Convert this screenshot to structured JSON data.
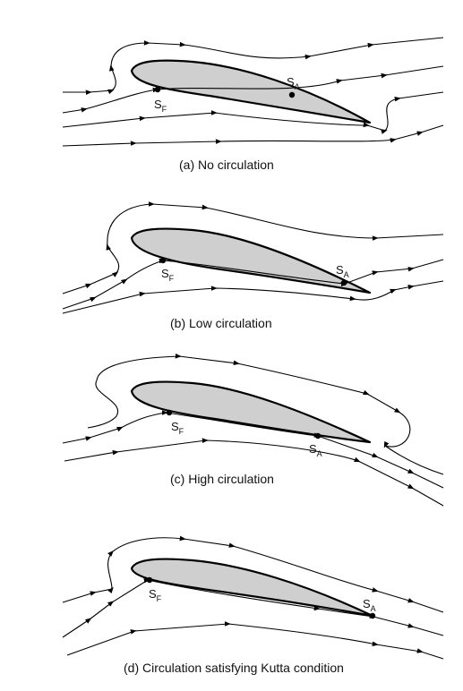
{
  "panels": [
    {
      "caption": "(a) No circulation",
      "front_label": "S",
      "front_sub": "F",
      "rear_label": "S",
      "rear_sub": "A"
    },
    {
      "caption": "(b) Low circulation",
      "front_label": "S",
      "front_sub": "F",
      "rear_label": "S",
      "rear_sub": "A"
    },
    {
      "caption": "(c) High circulation",
      "front_label": "S",
      "front_sub": "F",
      "rear_label": "S",
      "rear_sub": "A"
    },
    {
      "caption": "(d) Circulation satisfying Kutta condition",
      "front_label": "S",
      "front_sub": "F",
      "rear_label": "S",
      "rear_sub": "A"
    }
  ],
  "colors": {
    "airfoil_fill": "#cfcfcf",
    "outline": "#000000",
    "background": "#ffffff"
  }
}
